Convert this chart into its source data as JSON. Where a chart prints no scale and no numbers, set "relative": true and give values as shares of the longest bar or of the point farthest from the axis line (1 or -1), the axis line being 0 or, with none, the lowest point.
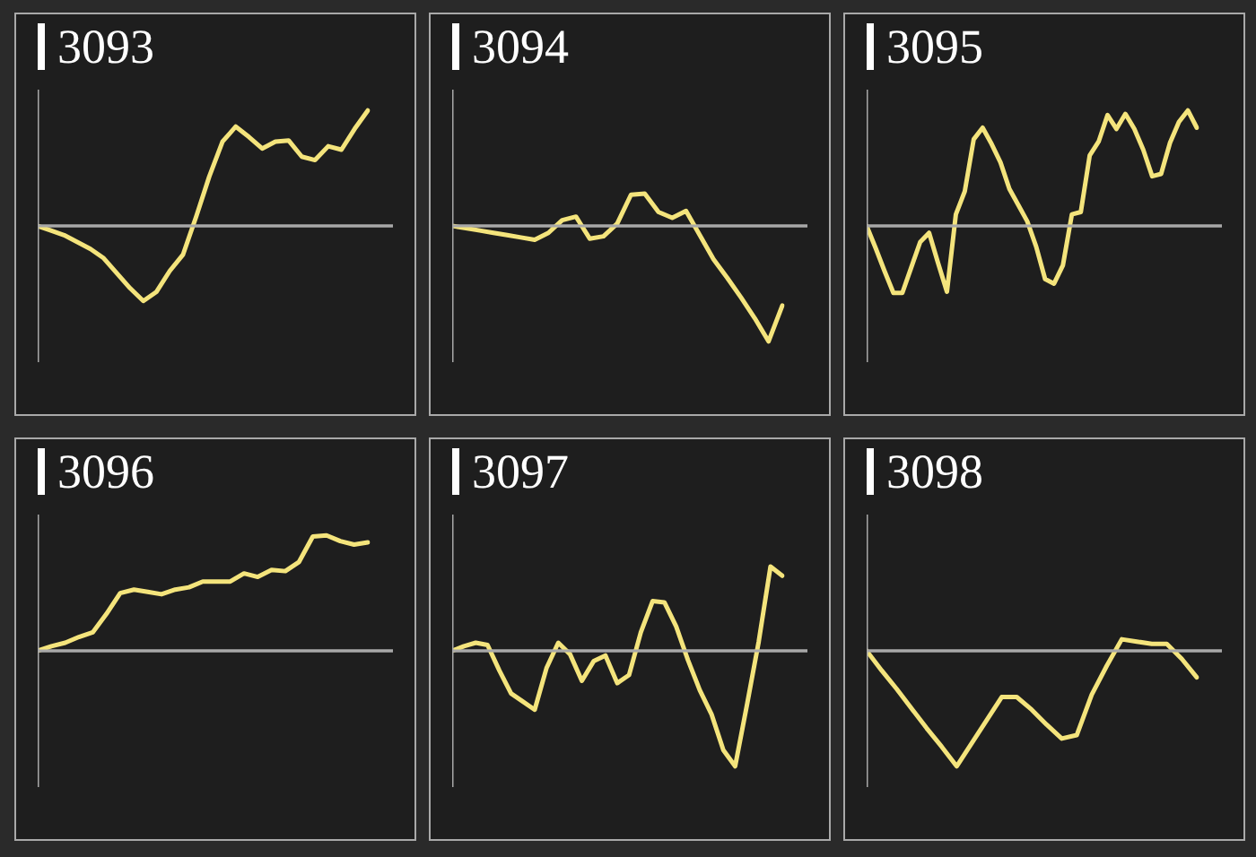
{
  "chart_data": [
    {
      "type": "line",
      "title": "3093",
      "relative": true,
      "categories": [
        null,
        null,
        null,
        null,
        null,
        null,
        null,
        null,
        null,
        null,
        null,
        null,
        null,
        null,
        null,
        null,
        null,
        null,
        null,
        null,
        null,
        null,
        null,
        null,
        null,
        null
      ],
      "series": [
        {
          "color": "#f4e47c",
          "values": [
            0,
            -0.04,
            -0.08,
            -0.14,
            -0.2,
            -0.28,
            -0.41,
            -0.54,
            -0.65,
            -0.57,
            -0.39,
            -0.25,
            0.08,
            0.43,
            0.73,
            0.86,
            0.77,
            0.67,
            0.73,
            0.74,
            0.6,
            0.57,
            0.69,
            0.66,
            0.84,
            1
          ]
        }
      ]
    },
    {
      "type": "line",
      "title": "3094",
      "relative": true,
      "categories": [
        null,
        null,
        null,
        null,
        null,
        null,
        null,
        null,
        null,
        null,
        null,
        null,
        null,
        null,
        null,
        null,
        null,
        null,
        null,
        null,
        null,
        null,
        null,
        null,
        null
      ],
      "series": [
        {
          "color": "#f4e47c",
          "values": [
            0,
            -0.02,
            -0.04,
            -0.06,
            -0.08,
            -0.1,
            -0.12,
            -0.06,
            0.05,
            0.08,
            -0.11,
            -0.09,
            0.02,
            0.27,
            0.28,
            0.12,
            0.07,
            0.13,
            -0.08,
            -0.29,
            -0.45,
            -0.62,
            -0.8,
            -1,
            -0.69
          ]
        }
      ]
    },
    {
      "type": "line",
      "title": "3095",
      "relative": true,
      "categories": [
        null,
        null,
        null,
        null,
        null,
        null,
        null,
        null,
        null,
        null,
        null,
        null,
        null,
        null,
        null,
        null,
        null,
        null,
        null,
        null,
        null,
        null,
        null,
        null,
        null,
        null,
        null,
        null,
        null,
        null,
        null,
        null,
        null,
        null,
        null,
        null,
        null,
        null
      ],
      "series": [
        {
          "color": "#f4e47c",
          "values": [
            0,
            -0.19,
            -0.39,
            -0.58,
            -0.58,
            -0.36,
            -0.14,
            -0.06,
            -0.32,
            -0.57,
            0.1,
            0.3,
            0.75,
            0.85,
            0.71,
            0.55,
            0.32,
            0.18,
            0.04,
            -0.18,
            -0.46,
            -0.5,
            -0.34,
            0.1,
            0.12,
            0.61,
            0.73,
            0.96,
            0.84,
            0.97,
            0.84,
            0.66,
            0.43,
            0.45,
            0.72,
            0.9,
            1,
            0.85
          ]
        }
      ]
    },
    {
      "type": "line",
      "title": "3096",
      "relative": true,
      "categories": [
        null,
        null,
        null,
        null,
        null,
        null,
        null,
        null,
        null,
        null,
        null,
        null,
        null,
        null,
        null,
        null,
        null,
        null,
        null,
        null,
        null,
        null,
        null,
        null,
        null
      ],
      "series": [
        {
          "color": "#f4e47c",
          "values": [
            0,
            0.04,
            0.07,
            0.12,
            0.16,
            0.32,
            0.5,
            0.53,
            0.51,
            0.49,
            0.53,
            0.55,
            0.6,
            0.6,
            0.6,
            0.67,
            0.64,
            0.7,
            0.69,
            0.77,
            0.99,
            1,
            0.95,
            0.92,
            0.94
          ]
        }
      ]
    },
    {
      "type": "line",
      "title": "3097",
      "relative": true,
      "categories": [
        null,
        null,
        null,
        null,
        null,
        null,
        null,
        null,
        null,
        null,
        null,
        null,
        null,
        null,
        null,
        null,
        null,
        null,
        null,
        null,
        null,
        null,
        null,
        null,
        null,
        null,
        null,
        null,
        null
      ],
      "series": [
        {
          "color": "#f4e47c",
          "values": [
            0,
            0.04,
            0.07,
            0.05,
            -0.17,
            -0.37,
            -0.44,
            -0.51,
            -0.15,
            0.07,
            -0.03,
            -0.26,
            -0.09,
            -0.04,
            -0.28,
            -0.21,
            0.16,
            0.43,
            0.42,
            0.21,
            -0.08,
            -0.34,
            -0.55,
            -0.86,
            -1,
            -0.47,
            0.08,
            0.73,
            0.65
          ]
        }
      ]
    },
    {
      "type": "line",
      "title": "3098",
      "relative": true,
      "categories": [
        null,
        null,
        null,
        null,
        null,
        null,
        null,
        null,
        null,
        null,
        null,
        null,
        null,
        null,
        null,
        null,
        null,
        null,
        null,
        null,
        null,
        null,
        null
      ],
      "series": [
        {
          "color": "#f4e47c",
          "values": [
            0,
            -0.17,
            -0.33,
            -0.5,
            -0.67,
            -0.83,
            -1,
            -0.8,
            -0.6,
            -0.4,
            -0.4,
            -0.51,
            -0.64,
            -0.76,
            -0.73,
            -0.38,
            -0.13,
            0.1,
            0.08,
            0.06,
            0.06,
            -0.07,
            -0.23
          ]
        }
      ]
    }
  ]
}
